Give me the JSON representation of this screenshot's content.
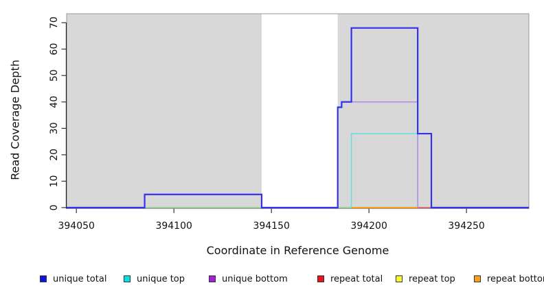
{
  "chart_data": {
    "type": "line",
    "title": "",
    "xlabel": "Coordinate in Reference Genome",
    "ylabel": "Read Coverage Depth",
    "xlim": [
      394045,
      394282
    ],
    "ylim": [
      0,
      73.4
    ],
    "x_ticks": [
      394050,
      394100,
      394150,
      394200,
      394250
    ],
    "y_ticks": [
      0,
      10,
      20,
      30,
      40,
      50,
      60,
      70
    ],
    "grid": false,
    "legend_position": "bottom",
    "plot_bg_color": "#d8d8d8",
    "plot_border_color": "#999999",
    "axis_color": "#222222",
    "tick_color": "#333333",
    "text_color": "#111111",
    "highlight_band": {
      "x0": 394145,
      "x1": 394184,
      "color": "#ffffff"
    },
    "series": [
      {
        "name": "zero-coverage-overlap",
        "label": "",
        "in_legend": false,
        "color": "#86cc86",
        "width": 1.4,
        "paths": [
          [
            [
              394085,
              0
            ],
            [
              394145,
              0
            ]
          ],
          [
            [
              394184,
              0
            ],
            [
              394191,
              0
            ]
          ]
        ]
      },
      {
        "name": "repeat-bottom",
        "label": "repeat bottom",
        "in_legend": true,
        "color": "#fd9f16",
        "width": 2,
        "paths": [
          [
            [
              394191,
              0
            ],
            [
              394225,
              0
            ]
          ]
        ]
      },
      {
        "name": "repeat-total",
        "label": "repeat total",
        "in_legend": true,
        "color": "#dc4854",
        "width": 1.6,
        "paths": [
          [
            [
              394225,
              0
            ],
            [
              394232,
              0
            ]
          ]
        ]
      },
      {
        "name": "repeat-top",
        "label": "repeat top",
        "in_legend": true,
        "color": "#fbfb28",
        "width": 1.4,
        "paths": []
      },
      {
        "name": "unique-top",
        "label": "unique top",
        "in_legend": true,
        "color": "#58dfe8",
        "width": 1.4,
        "paths": [
          [
            [
              394191,
              0
            ],
            [
              394191,
              28
            ],
            [
              394232,
              28
            ],
            [
              394232,
              0
            ]
          ]
        ]
      },
      {
        "name": "unique-bottom",
        "label": "unique bottom",
        "in_legend": true,
        "color": "#b27de8",
        "width": 1.4,
        "paths": [
          [
            [
              394045,
              0
            ],
            [
              394085,
              0
            ]
          ],
          [
            [
              394184,
              0
            ],
            [
              394184,
              38
            ],
            [
              394186,
              38
            ],
            [
              394186,
              40
            ],
            [
              394225,
              40
            ],
            [
              394225,
              0
            ]
          ],
          [
            [
              394232,
              0
            ],
            [
              394282,
              0
            ]
          ]
        ]
      },
      {
        "name": "unique-total",
        "label": "unique total",
        "in_legend": true,
        "color": "#3232ee",
        "width": 2.2,
        "paths": [
          [
            [
              394045,
              0
            ],
            [
              394085,
              0
            ],
            [
              394085,
              5
            ],
            [
              394145,
              5
            ],
            [
              394145,
              0
            ],
            [
              394184,
              0
            ],
            [
              394184,
              38
            ],
            [
              394186,
              38
            ],
            [
              394186,
              40
            ],
            [
              394191,
              40
            ],
            [
              394191,
              68
            ],
            [
              394225,
              68
            ],
            [
              394225,
              28
            ],
            [
              394232,
              28
            ],
            [
              394232,
              0
            ],
            [
              394282,
              0
            ]
          ]
        ]
      }
    ],
    "legend": [
      {
        "label": "unique total",
        "color": "#1010e8"
      },
      {
        "label": "unique top",
        "color": "#00e2ea"
      },
      {
        "label": "unique bottom",
        "color": "#a51fd8"
      },
      {
        "label": "repeat total",
        "color": "#f01218"
      },
      {
        "label": "repeat top",
        "color": "#fbfb28"
      },
      {
        "label": "repeat bottom",
        "color": "#fda118"
      }
    ]
  }
}
